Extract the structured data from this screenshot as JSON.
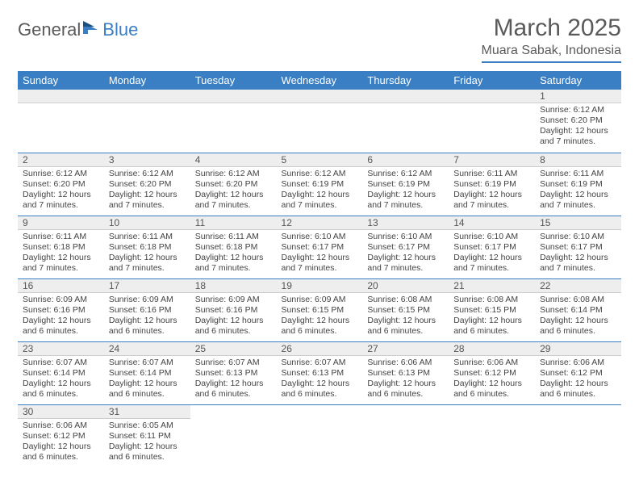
{
  "logo": {
    "text1": "General",
    "text2": "Blue"
  },
  "title": "March 2025",
  "location": "Muara Sabak, Indonesia",
  "colors": {
    "header_bg": "#3a7fc4",
    "header_text": "#ffffff",
    "row_separator": "#3a7fc4",
    "daynum_bg": "#eeeeee",
    "text": "#444444",
    "title_color": "#5a5a5a"
  },
  "typography": {
    "title_fontsize": 30,
    "location_fontsize": 16,
    "dayheader_fontsize": 13,
    "daynum_fontsize": 12,
    "body_fontsize": 10.5
  },
  "dayHeaders": [
    "Sunday",
    "Monday",
    "Tuesday",
    "Wednesday",
    "Thursday",
    "Friday",
    "Saturday"
  ],
  "weeks": [
    [
      null,
      null,
      null,
      null,
      null,
      null,
      {
        "n": "1",
        "sunrise": "6:12 AM",
        "sunset": "6:20 PM",
        "daylight": "12 hours and 7 minutes."
      }
    ],
    [
      {
        "n": "2",
        "sunrise": "6:12 AM",
        "sunset": "6:20 PM",
        "daylight": "12 hours and 7 minutes."
      },
      {
        "n": "3",
        "sunrise": "6:12 AM",
        "sunset": "6:20 PM",
        "daylight": "12 hours and 7 minutes."
      },
      {
        "n": "4",
        "sunrise": "6:12 AM",
        "sunset": "6:20 PM",
        "daylight": "12 hours and 7 minutes."
      },
      {
        "n": "5",
        "sunrise": "6:12 AM",
        "sunset": "6:19 PM",
        "daylight": "12 hours and 7 minutes."
      },
      {
        "n": "6",
        "sunrise": "6:12 AM",
        "sunset": "6:19 PM",
        "daylight": "12 hours and 7 minutes."
      },
      {
        "n": "7",
        "sunrise": "6:11 AM",
        "sunset": "6:19 PM",
        "daylight": "12 hours and 7 minutes."
      },
      {
        "n": "8",
        "sunrise": "6:11 AM",
        "sunset": "6:19 PM",
        "daylight": "12 hours and 7 minutes."
      }
    ],
    [
      {
        "n": "9",
        "sunrise": "6:11 AM",
        "sunset": "6:18 PM",
        "daylight": "12 hours and 7 minutes."
      },
      {
        "n": "10",
        "sunrise": "6:11 AM",
        "sunset": "6:18 PM",
        "daylight": "12 hours and 7 minutes."
      },
      {
        "n": "11",
        "sunrise": "6:11 AM",
        "sunset": "6:18 PM",
        "daylight": "12 hours and 7 minutes."
      },
      {
        "n": "12",
        "sunrise": "6:10 AM",
        "sunset": "6:17 PM",
        "daylight": "12 hours and 7 minutes."
      },
      {
        "n": "13",
        "sunrise": "6:10 AM",
        "sunset": "6:17 PM",
        "daylight": "12 hours and 7 minutes."
      },
      {
        "n": "14",
        "sunrise": "6:10 AM",
        "sunset": "6:17 PM",
        "daylight": "12 hours and 7 minutes."
      },
      {
        "n": "15",
        "sunrise": "6:10 AM",
        "sunset": "6:17 PM",
        "daylight": "12 hours and 7 minutes."
      }
    ],
    [
      {
        "n": "16",
        "sunrise": "6:09 AM",
        "sunset": "6:16 PM",
        "daylight": "12 hours and 6 minutes."
      },
      {
        "n": "17",
        "sunrise": "6:09 AM",
        "sunset": "6:16 PM",
        "daylight": "12 hours and 6 minutes."
      },
      {
        "n": "18",
        "sunrise": "6:09 AM",
        "sunset": "6:16 PM",
        "daylight": "12 hours and 6 minutes."
      },
      {
        "n": "19",
        "sunrise": "6:09 AM",
        "sunset": "6:15 PM",
        "daylight": "12 hours and 6 minutes."
      },
      {
        "n": "20",
        "sunrise": "6:08 AM",
        "sunset": "6:15 PM",
        "daylight": "12 hours and 6 minutes."
      },
      {
        "n": "21",
        "sunrise": "6:08 AM",
        "sunset": "6:15 PM",
        "daylight": "12 hours and 6 minutes."
      },
      {
        "n": "22",
        "sunrise": "6:08 AM",
        "sunset": "6:14 PM",
        "daylight": "12 hours and 6 minutes."
      }
    ],
    [
      {
        "n": "23",
        "sunrise": "6:07 AM",
        "sunset": "6:14 PM",
        "daylight": "12 hours and 6 minutes."
      },
      {
        "n": "24",
        "sunrise": "6:07 AM",
        "sunset": "6:14 PM",
        "daylight": "12 hours and 6 minutes."
      },
      {
        "n": "25",
        "sunrise": "6:07 AM",
        "sunset": "6:13 PM",
        "daylight": "12 hours and 6 minutes."
      },
      {
        "n": "26",
        "sunrise": "6:07 AM",
        "sunset": "6:13 PM",
        "daylight": "12 hours and 6 minutes."
      },
      {
        "n": "27",
        "sunrise": "6:06 AM",
        "sunset": "6:13 PM",
        "daylight": "12 hours and 6 minutes."
      },
      {
        "n": "28",
        "sunrise": "6:06 AM",
        "sunset": "6:12 PM",
        "daylight": "12 hours and 6 minutes."
      },
      {
        "n": "29",
        "sunrise": "6:06 AM",
        "sunset": "6:12 PM",
        "daylight": "12 hours and 6 minutes."
      }
    ],
    [
      {
        "n": "30",
        "sunrise": "6:06 AM",
        "sunset": "6:12 PM",
        "daylight": "12 hours and 6 minutes."
      },
      {
        "n": "31",
        "sunrise": "6:05 AM",
        "sunset": "6:11 PM",
        "daylight": "12 hours and 6 minutes."
      },
      null,
      null,
      null,
      null,
      null
    ]
  ],
  "labels": {
    "sunrise": "Sunrise:",
    "sunset": "Sunset:",
    "daylight": "Daylight:"
  }
}
